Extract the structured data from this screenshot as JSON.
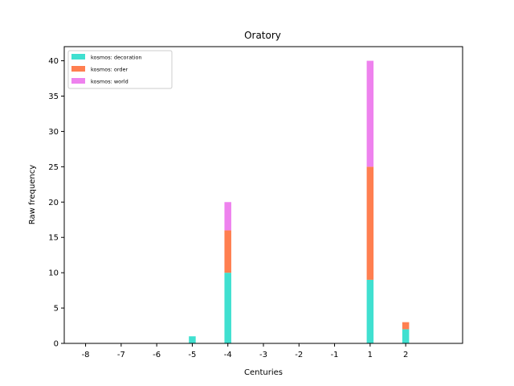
{
  "chart_data": {
    "type": "bar",
    "stacked": true,
    "title": "Oratory",
    "xlabel": "Centuries",
    "ylabel": "Raw frequency",
    "xlim": [
      -8.6,
      2.6
    ],
    "ylim": [
      0,
      42
    ],
    "xticks": [
      -8,
      -7,
      -6,
      -5,
      -4,
      -3,
      -2,
      -1,
      1,
      2
    ],
    "xtick_labels": [
      "-8",
      "-7",
      "-6",
      "-5",
      "-4",
      "-3",
      "-2",
      "-1",
      "1",
      "2"
    ],
    "yticks": [
      0,
      5,
      10,
      15,
      20,
      25,
      30,
      35,
      40
    ],
    "ytick_labels": [
      "0",
      "5",
      "10",
      "15",
      "20",
      "25",
      "30",
      "35",
      "40"
    ],
    "legend_position": "top-left",
    "grid": false,
    "categories": [
      -5,
      -4,
      1,
      2
    ],
    "series": [
      {
        "name": "kosmos: decoration",
        "color": "#40e0d0",
        "values": [
          1,
          10,
          9,
          2
        ]
      },
      {
        "name": "kosmos: order",
        "color": "#ff7f50",
        "values": [
          0,
          6,
          16,
          1
        ]
      },
      {
        "name": "kosmos: world",
        "color": "#ee82ee",
        "values": [
          0,
          4,
          15,
          0
        ]
      }
    ]
  }
}
